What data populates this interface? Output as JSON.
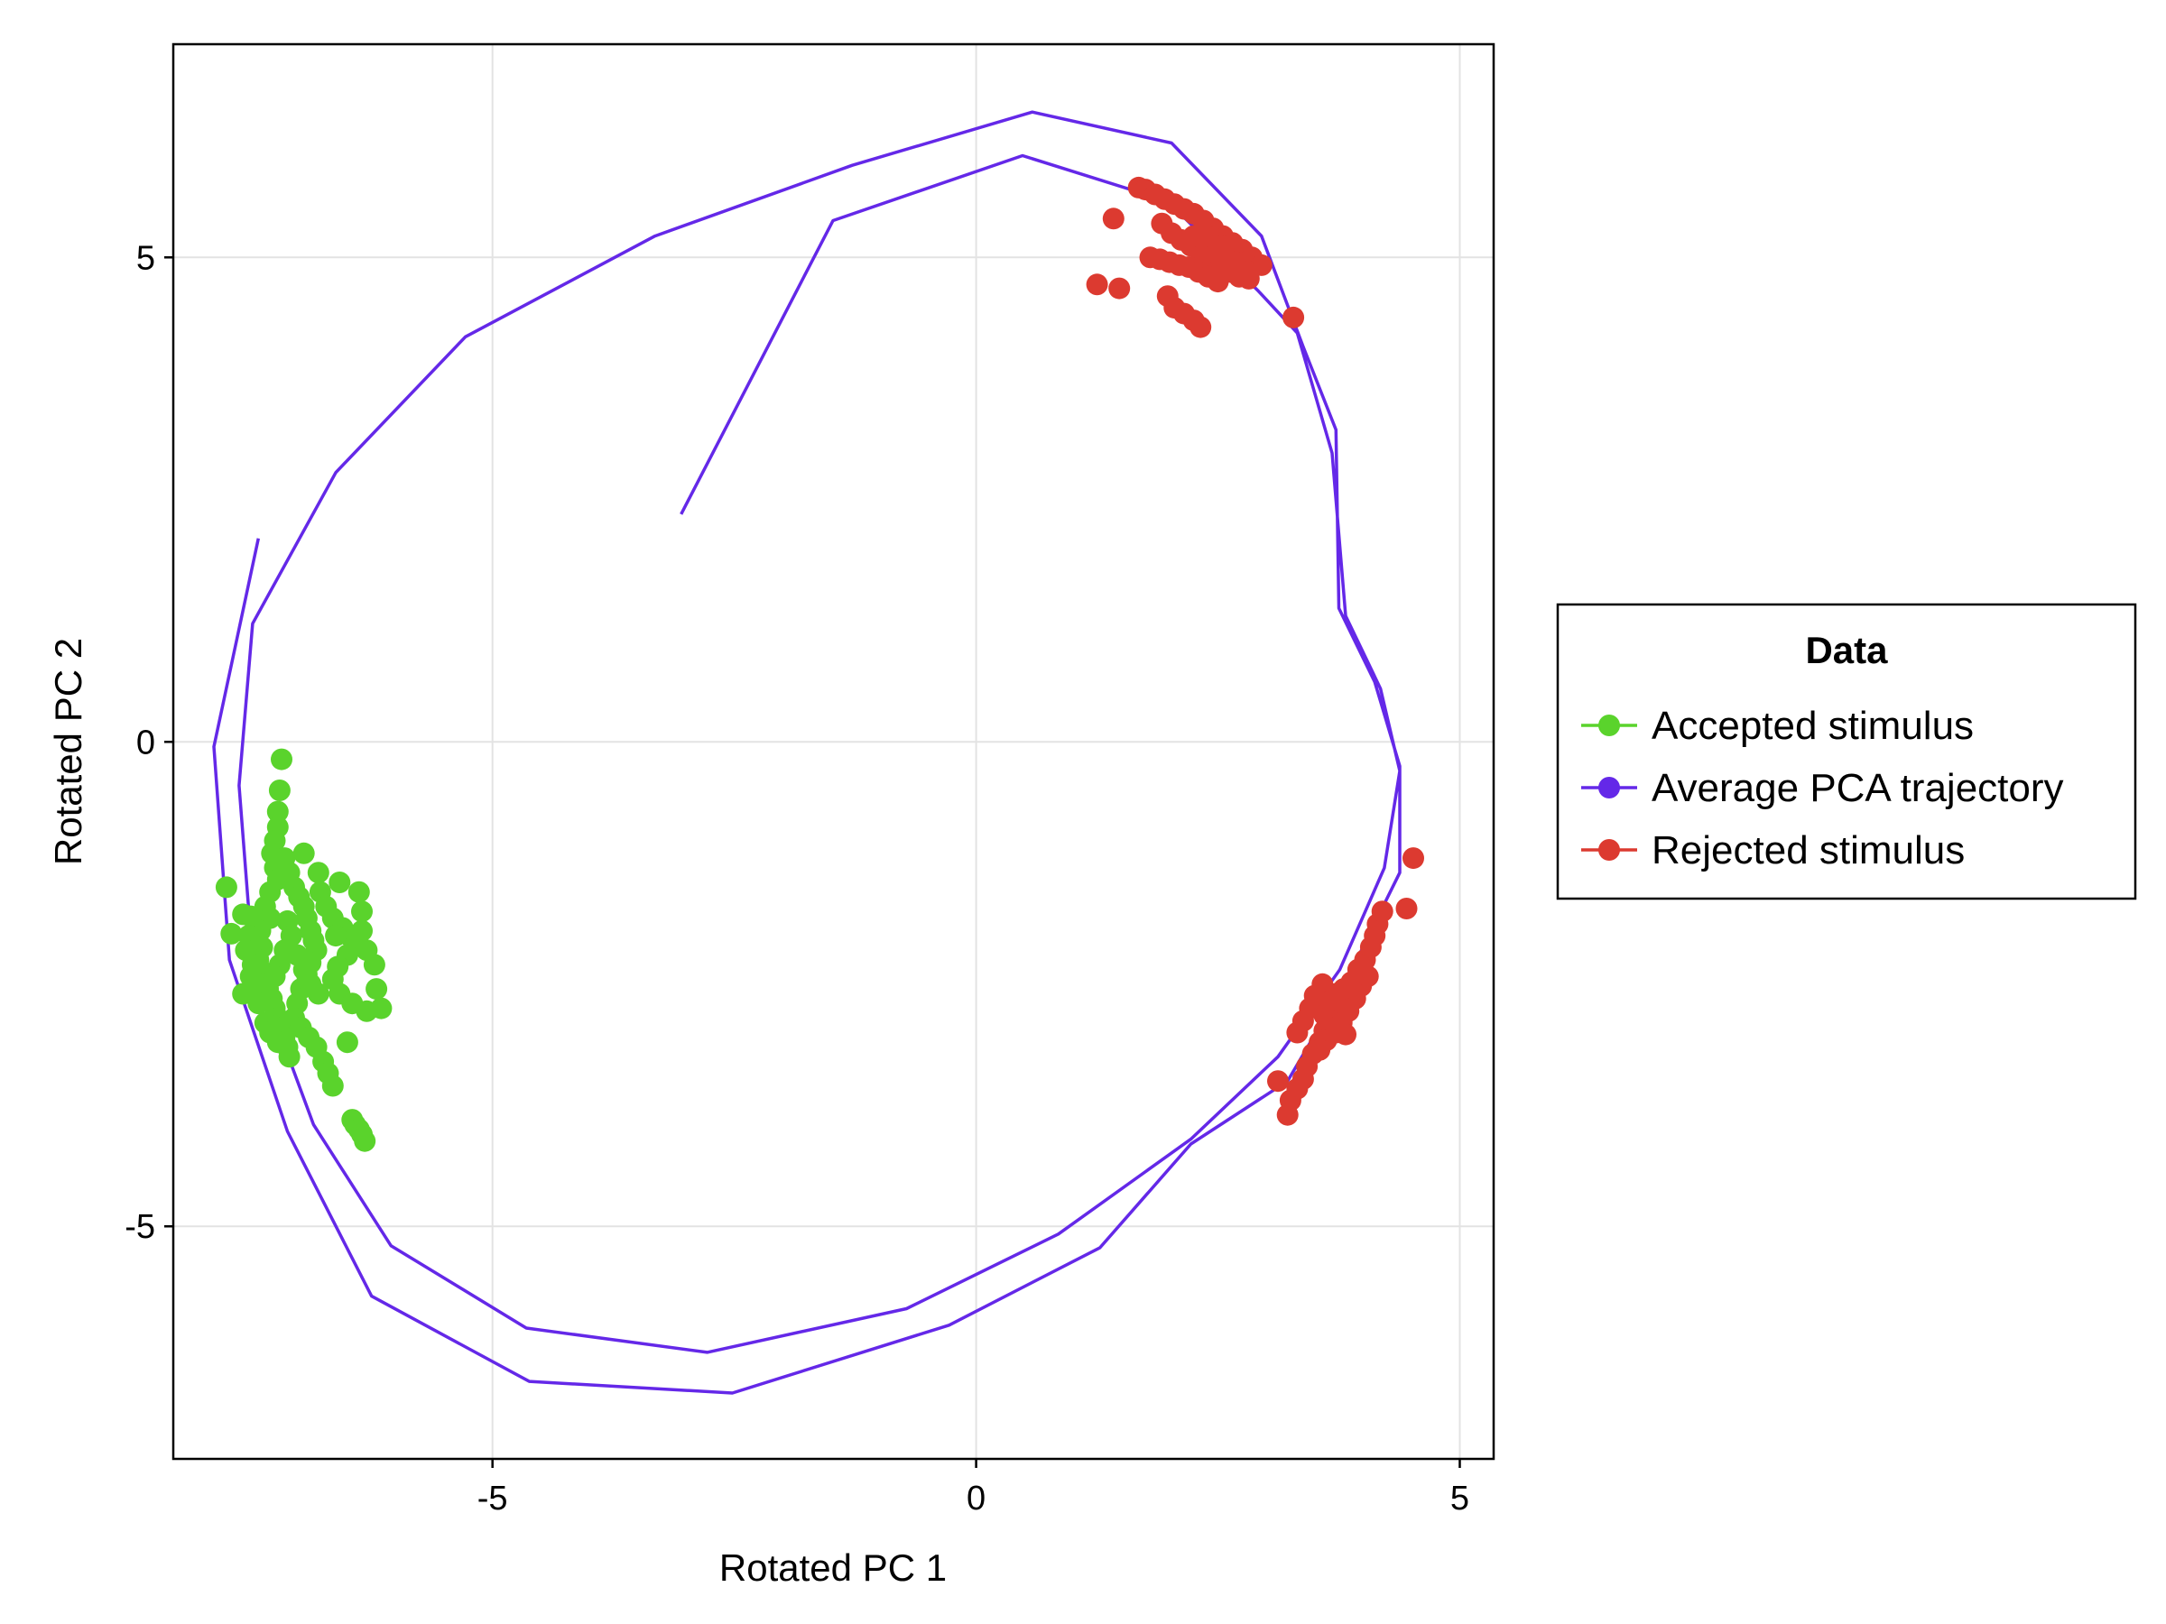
{
  "chart_data": {
    "type": "scatter",
    "xlabel": "Rotated PC 1",
    "ylabel": "Rotated PC 2",
    "xlim": [
      -8.3,
      5.35
    ],
    "ylim": [
      -7.4,
      7.2
    ],
    "xticks": [
      -5,
      0,
      5
    ],
    "yticks": [
      -5,
      0,
      5
    ],
    "xtick_labels": [
      "-5",
      "0",
      "5"
    ],
    "ytick_labels": [
      "-5",
      "0",
      "5"
    ],
    "grid": true,
    "legend": {
      "title": "Data",
      "placement": "right",
      "entries": [
        {
          "label": "Accepted stimulus",
          "color": "#5ad32c"
        },
        {
          "label": "Average PCA trajectory",
          "color": "#6428e8"
        },
        {
          "label": "Rejected stimulus",
          "color": "#dc3a30"
        }
      ]
    },
    "series": [
      {
        "name": "Average PCA trajectory",
        "kind": "line",
        "color": "#6428e8",
        "points": [
          [
            -3.05,
            2.35
          ],
          [
            -1.48,
            5.38
          ],
          [
            0.48,
            6.05
          ],
          [
            1.98,
            5.58
          ],
          [
            2.92,
            4.65
          ],
          [
            3.32,
            4.22
          ],
          [
            3.68,
            2.98
          ],
          [
            3.82,
            1.3
          ],
          [
            4.18,
            0.55
          ],
          [
            4.38,
            -0.3
          ],
          [
            4.22,
            -1.3
          ],
          [
            3.76,
            -2.35
          ],
          [
            3.12,
            -3.25
          ],
          [
            2.22,
            -4.1
          ],
          [
            0.85,
            -5.08
          ],
          [
            -0.72,
            -5.85
          ],
          [
            -2.78,
            -6.3
          ],
          [
            -4.65,
            -6.05
          ],
          [
            -6.05,
            -5.2
          ],
          [
            -6.85,
            -3.95
          ],
          [
            -7.48,
            -2.25
          ],
          [
            -7.62,
            -0.45
          ],
          [
            -7.48,
            1.22
          ],
          [
            -6.62,
            2.78
          ],
          [
            -5.28,
            4.18
          ],
          [
            -3.32,
            5.22
          ],
          [
            -1.28,
            5.95
          ],
          [
            0.58,
            6.5
          ],
          [
            2.02,
            6.18
          ],
          [
            2.95,
            5.22
          ],
          [
            3.38,
            4.08
          ],
          [
            3.72,
            3.22
          ],
          [
            3.75,
            1.38
          ],
          [
            4.12,
            0.62
          ],
          [
            4.38,
            -0.25
          ],
          [
            4.38,
            -1.35
          ],
          [
            3.82,
            -2.48
          ],
          [
            3.22,
            -3.5
          ],
          [
            2.22,
            -4.15
          ],
          [
            1.28,
            -5.22
          ],
          [
            -0.28,
            -6.02
          ],
          [
            -2.52,
            -6.72
          ],
          [
            -4.62,
            -6.6
          ],
          [
            -6.25,
            -5.72
          ],
          [
            -7.12,
            -4.02
          ],
          [
            -7.72,
            -2.25
          ],
          [
            -7.88,
            -0.05
          ],
          [
            -7.42,
            2.1
          ]
        ]
      },
      {
        "name": "Accepted stimulus",
        "kind": "scatter",
        "color": "#5ad32c",
        "points": [
          [
            -7.18,
            -0.18
          ],
          [
            -7.2,
            -0.5
          ],
          [
            -7.22,
            -0.72
          ],
          [
            -7.22,
            -0.88
          ],
          [
            -7.25,
            -1.02
          ],
          [
            -7.28,
            -1.15
          ],
          [
            -7.25,
            -1.3
          ],
          [
            -7.22,
            -1.42
          ],
          [
            -7.3,
            -1.55
          ],
          [
            -7.35,
            -1.7
          ],
          [
            -7.3,
            -1.82
          ],
          [
            -7.4,
            -1.95
          ],
          [
            -7.45,
            -2.05
          ],
          [
            -7.38,
            -2.12
          ],
          [
            -7.42,
            -2.25
          ],
          [
            -7.4,
            -2.35
          ],
          [
            -7.35,
            -2.45
          ],
          [
            -7.32,
            -2.55
          ],
          [
            -7.28,
            -2.65
          ],
          [
            -7.25,
            -2.75
          ],
          [
            -7.22,
            -2.85
          ],
          [
            -7.18,
            -2.95
          ],
          [
            -7.15,
            -3.05
          ],
          [
            -7.12,
            -3.15
          ],
          [
            -7.1,
            -3.25
          ],
          [
            -7.5,
            -1.8
          ],
          [
            -7.52,
            -2.0
          ],
          [
            -7.48,
            -2.3
          ],
          [
            -7.45,
            -2.5
          ],
          [
            -7.42,
            -2.7
          ],
          [
            -7.35,
            -2.9
          ],
          [
            -7.3,
            -3.0
          ],
          [
            -7.22,
            -3.1
          ],
          [
            -7.15,
            -1.2
          ],
          [
            -7.1,
            -1.35
          ],
          [
            -7.05,
            -1.5
          ],
          [
            -7.0,
            -1.6
          ],
          [
            -6.95,
            -1.7
          ],
          [
            -6.92,
            -1.82
          ],
          [
            -6.88,
            -1.95
          ],
          [
            -6.85,
            -2.05
          ],
          [
            -6.82,
            -2.15
          ],
          [
            -6.88,
            -2.28
          ],
          [
            -6.92,
            -2.4
          ],
          [
            -6.98,
            -2.55
          ],
          [
            -7.02,
            -2.7
          ],
          [
            -7.05,
            -2.85
          ],
          [
            -6.98,
            -2.95
          ],
          [
            -6.9,
            -3.05
          ],
          [
            -6.82,
            -3.15
          ],
          [
            -6.75,
            -3.3
          ],
          [
            -6.7,
            -3.42
          ],
          [
            -6.65,
            -3.55
          ],
          [
            -7.12,
            -1.85
          ],
          [
            -7.08,
            -2.0
          ],
          [
            -7.15,
            -2.15
          ],
          [
            -7.2,
            -2.3
          ],
          [
            -7.25,
            -2.42
          ],
          [
            -7.02,
            -2.2
          ],
          [
            -6.95,
            -2.35
          ],
          [
            -6.88,
            -2.5
          ],
          [
            -6.8,
            -2.6
          ],
          [
            -6.78,
            -1.55
          ],
          [
            -6.72,
            -1.7
          ],
          [
            -6.65,
            -1.82
          ],
          [
            -6.55,
            -1.92
          ],
          [
            -6.48,
            -2.0
          ],
          [
            -6.42,
            -2.1
          ],
          [
            -6.5,
            -2.2
          ],
          [
            -6.6,
            -2.32
          ],
          [
            -6.65,
            -2.45
          ],
          [
            -6.58,
            -2.6
          ],
          [
            -6.95,
            -1.15
          ],
          [
            -6.8,
            -1.35
          ],
          [
            -6.58,
            -1.45
          ],
          [
            -6.38,
            -1.55
          ],
          [
            -6.35,
            -1.75
          ],
          [
            -6.35,
            -1.95
          ],
          [
            -6.3,
            -2.15
          ],
          [
            -6.22,
            -2.3
          ],
          [
            -6.2,
            -2.55
          ],
          [
            -6.15,
            -2.75
          ],
          [
            -6.45,
            -2.7
          ],
          [
            -6.3,
            -2.78
          ],
          [
            -6.5,
            -3.1
          ],
          [
            -6.45,
            -3.9
          ],
          [
            -6.42,
            -3.95
          ],
          [
            -6.38,
            -4.0
          ],
          [
            -6.35,
            -4.05
          ],
          [
            -6.32,
            -4.12
          ],
          [
            -7.75,
            -1.5
          ],
          [
            -7.7,
            -1.98
          ],
          [
            -7.58,
            -1.78
          ],
          [
            -7.55,
            -2.15
          ],
          [
            -7.5,
            -2.42
          ],
          [
            -7.58,
            -2.6
          ],
          [
            -6.62,
            -2.0
          ]
        ]
      },
      {
        "name": "Rejected stimulus",
        "kind": "scatter",
        "color": "#dc3a30",
        "points": [
          [
            1.42,
            5.4
          ],
          [
            1.68,
            5.72
          ],
          [
            1.75,
            5.7
          ],
          [
            1.85,
            5.65
          ],
          [
            1.95,
            5.6
          ],
          [
            2.05,
            5.55
          ],
          [
            2.15,
            5.5
          ],
          [
            2.25,
            5.45
          ],
          [
            2.35,
            5.38
          ],
          [
            2.45,
            5.3
          ],
          [
            2.55,
            5.22
          ],
          [
            2.65,
            5.15
          ],
          [
            2.75,
            5.08
          ],
          [
            2.85,
            5.0
          ],
          [
            2.95,
            4.92
          ],
          [
            1.92,
            5.35
          ],
          [
            2.02,
            5.25
          ],
          [
            2.12,
            5.18
          ],
          [
            2.22,
            5.12
          ],
          [
            2.32,
            5.05
          ],
          [
            2.42,
            4.98
          ],
          [
            2.52,
            4.9
          ],
          [
            2.62,
            4.85
          ],
          [
            2.72,
            4.8
          ],
          [
            2.82,
            4.78
          ],
          [
            1.8,
            5.0
          ],
          [
            1.9,
            4.98
          ],
          [
            2.0,
            4.95
          ],
          [
            2.1,
            4.92
          ],
          [
            2.2,
            4.9
          ],
          [
            2.3,
            4.85
          ],
          [
            2.4,
            4.8
          ],
          [
            2.5,
            4.75
          ],
          [
            2.25,
            5.22
          ],
          [
            2.38,
            5.1
          ],
          [
            2.48,
            5.05
          ],
          [
            2.58,
            5.0
          ],
          [
            2.68,
            4.95
          ],
          [
            1.25,
            4.72
          ],
          [
            1.48,
            4.68
          ],
          [
            1.98,
            4.6
          ],
          [
            2.05,
            4.48
          ],
          [
            2.15,
            4.42
          ],
          [
            2.25,
            4.35
          ],
          [
            2.32,
            4.28
          ],
          [
            2.38,
            5.22
          ],
          [
            2.45,
            5.2
          ],
          [
            2.55,
            5.12
          ],
          [
            2.8,
            4.85
          ],
          [
            3.28,
            4.38
          ],
          [
            3.95,
            -2.35
          ],
          [
            3.88,
            -2.48
          ],
          [
            3.82,
            -2.6
          ],
          [
            3.75,
            -2.72
          ],
          [
            3.68,
            -2.85
          ],
          [
            3.6,
            -2.98
          ],
          [
            3.55,
            -3.1
          ],
          [
            3.48,
            -3.22
          ],
          [
            3.42,
            -3.35
          ],
          [
            3.38,
            -3.48
          ],
          [
            3.32,
            -3.58
          ],
          [
            3.25,
            -3.7
          ],
          [
            3.22,
            -3.85
          ],
          [
            4.02,
            -2.25
          ],
          [
            4.08,
            -2.12
          ],
          [
            4.12,
            -2.0
          ],
          [
            4.15,
            -1.88
          ],
          [
            4.2,
            -1.75
          ],
          [
            4.45,
            -1.72
          ],
          [
            3.58,
            -2.5
          ],
          [
            3.5,
            -2.62
          ],
          [
            3.45,
            -2.75
          ],
          [
            3.38,
            -2.88
          ],
          [
            3.32,
            -3.0
          ],
          [
            3.6,
            -2.82
          ],
          [
            3.68,
            -2.95
          ],
          [
            3.62,
            -3.08
          ],
          [
            3.55,
            -3.18
          ],
          [
            3.72,
            -3.0
          ],
          [
            3.78,
            -2.9
          ],
          [
            3.85,
            -2.78
          ],
          [
            3.92,
            -2.65
          ],
          [
            3.98,
            -2.52
          ],
          [
            4.05,
            -2.42
          ],
          [
            3.8,
            -2.55
          ],
          [
            3.72,
            -2.6
          ],
          [
            3.65,
            -2.68
          ],
          [
            3.12,
            -3.5
          ],
          [
            4.52,
            -1.2
          ],
          [
            3.82,
            -3.02
          ]
        ]
      }
    ]
  }
}
